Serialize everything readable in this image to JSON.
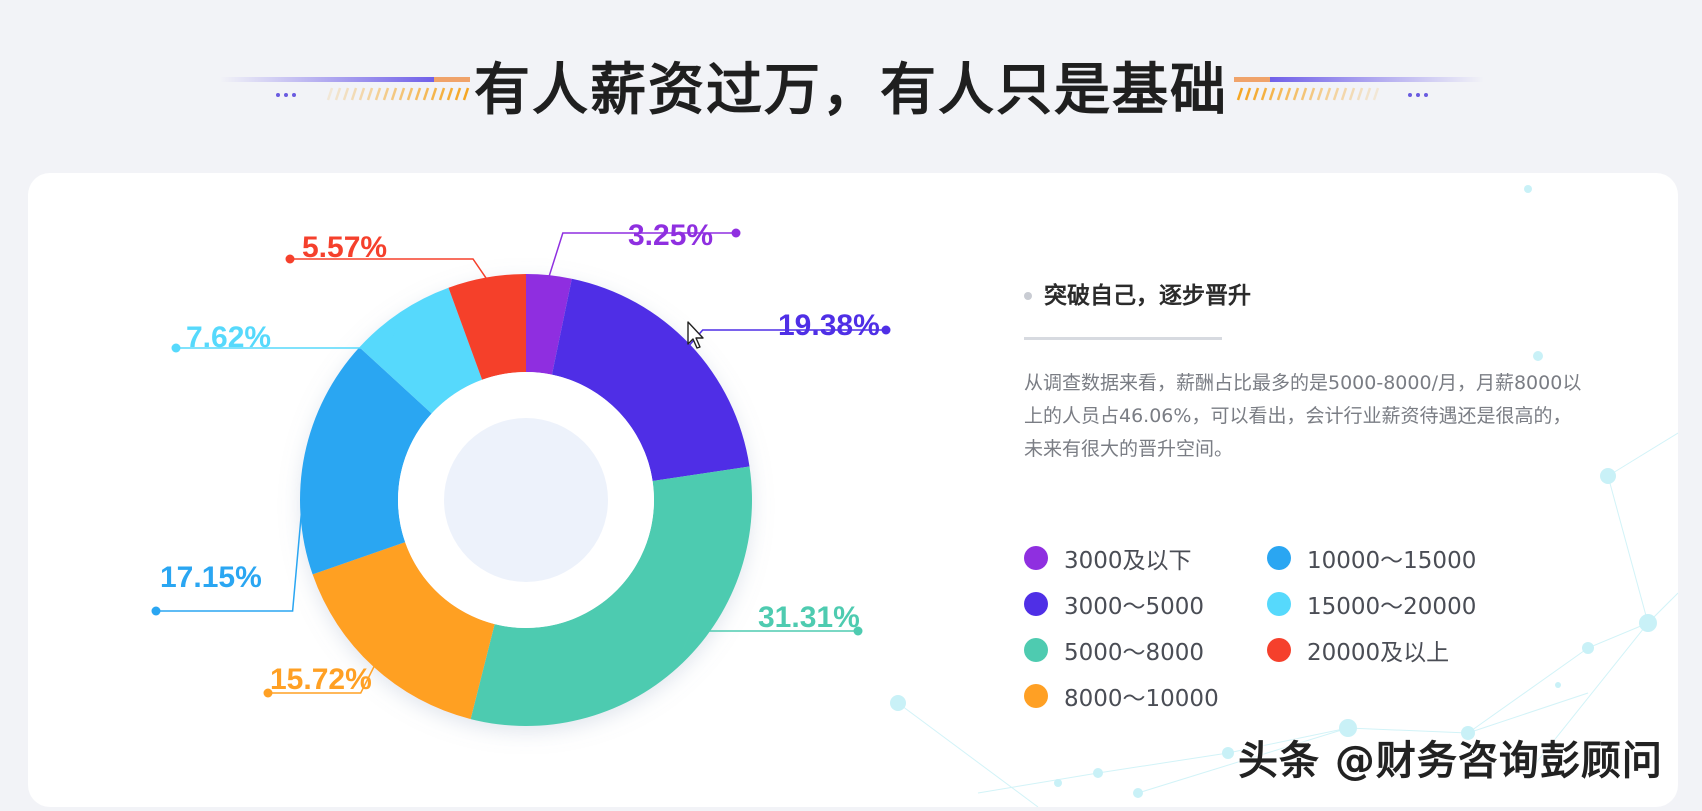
{
  "page": {
    "title": "有人薪资过万，有人只是基础"
  },
  "colors": {
    "background": "#f2f3f7",
    "card": "#ffffff",
    "accent_purple": "#5b47e6",
    "accent_orange": "#f5a623"
  },
  "chart_data": {
    "type": "pie",
    "donut": true,
    "title": "",
    "categories": [
      "3000及以下",
      "3000～5000",
      "5000～8000",
      "8000～10000",
      "10000～15000",
      "15000～20000",
      "20000及以上"
    ],
    "values": [
      3.25,
      19.38,
      31.31,
      15.72,
      17.15,
      7.62,
      5.57
    ],
    "value_labels": [
      "3.25%",
      "19.38%",
      "31.31%",
      "15.72%",
      "17.15%",
      "7.62%",
      "5.57%"
    ],
    "colors": [
      "#8f2fe0",
      "#4f2fe6",
      "#4ecbb0",
      "#ffa024",
      "#2aa6f2",
      "#56d9fc",
      "#f5402c"
    ],
    "unit": "%",
    "legend_position": "right"
  },
  "panel": {
    "heading": "突破自己，逐步晋升",
    "description": "从调查数据来看，薪酬占比最多的是5000-8000/月，月薪8000以上的人员占46.06%，可以看出，会计行业薪资待遇还是很高的，未来有很大的晋升空间。"
  },
  "legend": [
    {
      "label": "3000及以下",
      "color": "#8f2fe0"
    },
    {
      "label": "3000～5000",
      "color": "#4f2fe6"
    },
    {
      "label": "5000～8000",
      "color": "#4ecbb0"
    },
    {
      "label": "8000～10000",
      "color": "#ffa024"
    },
    {
      "label": "10000～15000",
      "color": "#2aa6f2"
    },
    {
      "label": "15000～20000",
      "color": "#56d9fc"
    },
    {
      "label": "20000及以上",
      "color": "#f5402c"
    }
  ],
  "watermark": "头条 @财务咨询彭顾问"
}
